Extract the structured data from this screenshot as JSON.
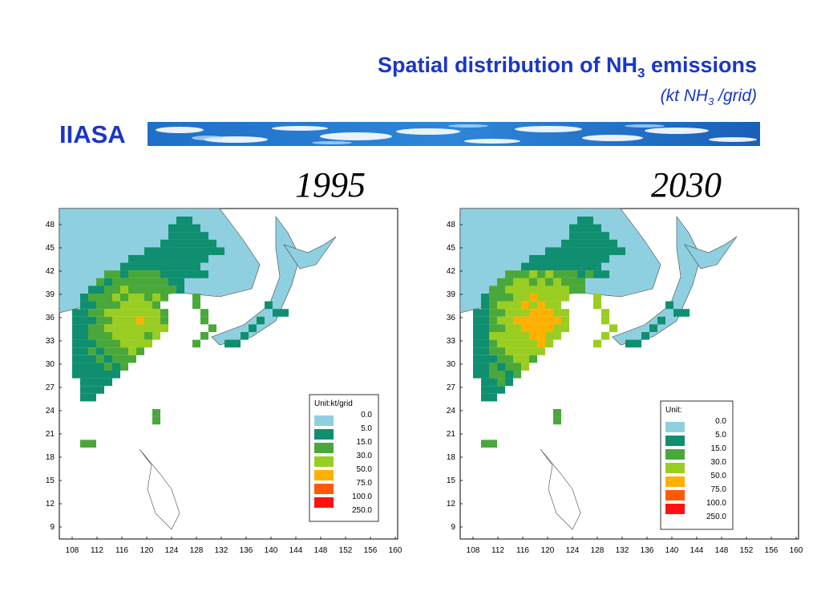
{
  "header": {
    "title_prefix": "Spatial distribution of NH",
    "title_sub": "3",
    "title_suffix": " emissions",
    "subtitle_prefix": "(kt NH",
    "subtitle_sub": "3",
    "subtitle_suffix": " /grid)",
    "brand": "IIASA",
    "title_color": "#1a36c8"
  },
  "panels": [
    {
      "year": "1995",
      "legend_title": "Unit:kt/grid",
      "y_ticks": [
        "48",
        "45",
        "42",
        "39",
        "36",
        "33",
        "30",
        "27",
        "24",
        "21",
        "18",
        "15",
        "12",
        "9"
      ],
      "x_ticks": [
        "108",
        "112",
        "116",
        "120",
        "124",
        "128",
        "132",
        "136",
        "140",
        "144",
        "148",
        "152",
        "156",
        "160"
      ]
    },
    {
      "year": "2030",
      "legend_title": "Unit:",
      "y_ticks": [
        "48",
        "45",
        "42",
        "39",
        "36",
        "33",
        "30",
        "27",
        "24",
        "21",
        "18",
        "15",
        "12",
        "9"
      ],
      "x_ticks": [
        "108",
        "112",
        "116",
        "120",
        "124",
        "128",
        "132",
        "136",
        "140",
        "144",
        "148",
        "152",
        "156",
        "160"
      ]
    }
  ],
  "legend": {
    "classes": [
      {
        "label": "0.0",
        "color": "#8fd0e0"
      },
      {
        "label": "5.0",
        "color": "#0f8f6f"
      },
      {
        "label": "15.0",
        "color": "#4aa83a"
      },
      {
        "label": "30.0",
        "color": "#9acd22"
      },
      {
        "label": "50.0",
        "color": "#ffb000"
      },
      {
        "label": "75.0",
        "color": "#ff5a0a"
      },
      {
        "label": "100.0",
        "color": "#ff1010"
      },
      {
        "label": "250.0",
        "color": null
      }
    ]
  },
  "colors": {
    "sea": "#ffffff",
    "land_background": "#8fd0e0",
    "coast_line": "#444444"
  }
}
